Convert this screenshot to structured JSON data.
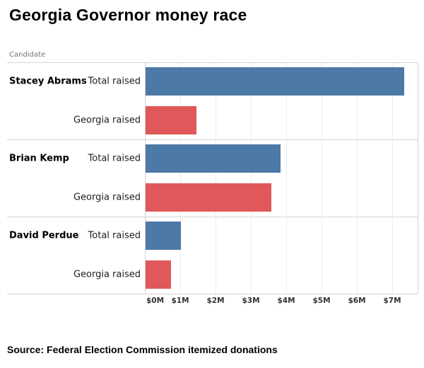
{
  "title": "Georgia Governor money race",
  "source": "Source: Federal Election Commission itemized donations",
  "colors": {
    "total_raised_bar": "#4d79a7",
    "georgia_raised_bar": "#e05859",
    "grid_line": "#ececec",
    "border_line": "#d4d4d4"
  },
  "chart_data": {
    "type": "bar",
    "orientation": "horizontal",
    "title": "Georgia Governor money race",
    "group_label": "Candidate",
    "categories": [
      "Stacey Abrams",
      "Brian Kemp",
      "David Perdue"
    ],
    "series": [
      {
        "name": "Total raised",
        "color": "#4d79a7",
        "values": [
          7.32,
          3.82,
          1.0
        ]
      },
      {
        "name": "Georgia raised",
        "color": "#e05859",
        "values": [
          1.43,
          3.56,
          0.72
        ]
      }
    ],
    "unit": "millions of dollars",
    "x_ticks": [
      "$0M",
      "$1M",
      "$2M",
      "$3M",
      "$4M",
      "$5M",
      "$6M",
      "$7M"
    ],
    "xlim": [
      0,
      7.72
    ],
    "grid": true,
    "legend": "none",
    "source": "Source: Federal Election Commission itemized donations"
  }
}
